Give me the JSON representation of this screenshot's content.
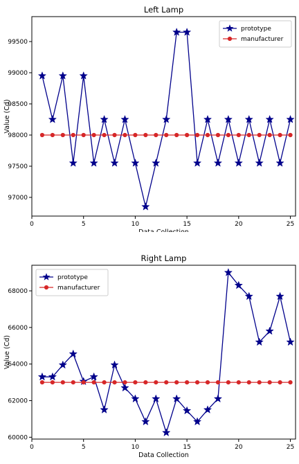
{
  "chart_data": [
    {
      "type": "line",
      "title": "Left Lamp",
      "xlabel": "Data Collection",
      "ylabel": "Value (Cd)",
      "xlim": [
        0,
        25.5
      ],
      "ylim": [
        96700,
        99900
      ],
      "xticks": [
        0,
        5,
        10,
        15,
        20,
        25
      ],
      "yticks": [
        97000,
        97500,
        98000,
        98500,
        99000,
        99500
      ],
      "legend_position": "top-right",
      "grid": false,
      "x": [
        1,
        2,
        3,
        4,
        5,
        6,
        7,
        8,
        9,
        10,
        11,
        12,
        13,
        14,
        15,
        16,
        17,
        18,
        19,
        20,
        21,
        22,
        23,
        24,
        25
      ],
      "series": [
        {
          "name": "prototype",
          "color": "#00008b",
          "marker": "star",
          "values": [
            98950,
            98250,
            98950,
            97550,
            98950,
            97550,
            98250,
            97550,
            98250,
            97550,
            96850,
            97550,
            98250,
            99650,
            99650,
            97550,
            98250,
            97550,
            98250,
            97550,
            98250,
            97550,
            98250,
            97550,
            98250
          ]
        },
        {
          "name": "manufacturer",
          "color": "#d62728",
          "marker": "circle",
          "values": [
            98000,
            98000,
            98000,
            98000,
            98000,
            98000,
            98000,
            98000,
            98000,
            98000,
            98000,
            98000,
            98000,
            98000,
            98000,
            98000,
            98000,
            98000,
            98000,
            98000,
            98000,
            98000,
            98000,
            98000,
            98000
          ]
        }
      ]
    },
    {
      "type": "line",
      "title": "Right Lamp",
      "xlabel": "Data Collection",
      "ylabel": "Value (Cd)",
      "xlim": [
        0,
        25.5
      ],
      "ylim": [
        59900,
        69400
      ],
      "xticks": [
        0,
        5,
        10,
        15,
        20,
        25
      ],
      "yticks": [
        60000,
        62000,
        64000,
        66000,
        68000
      ],
      "legend_position": "top-left",
      "grid": false,
      "x": [
        1,
        2,
        3,
        4,
        5,
        6,
        7,
        8,
        9,
        10,
        11,
        12,
        13,
        14,
        15,
        16,
        17,
        18,
        19,
        20,
        21,
        22,
        23,
        24,
        25
      ],
      "series": [
        {
          "name": "prototype",
          "color": "#00008b",
          "marker": "star",
          "values": [
            63300,
            63300,
            63950,
            64550,
            63050,
            63300,
            61500,
            63950,
            62700,
            62100,
            60850,
            62100,
            60250,
            62100,
            61450,
            60850,
            61500,
            62100,
            69000,
            68300,
            67700,
            65200,
            65800,
            67700,
            65200
          ]
        },
        {
          "name": "manufacturer",
          "color": "#d62728",
          "marker": "circle",
          "values": [
            63000,
            63000,
            63000,
            63000,
            63000,
            63000,
            63000,
            63000,
            63000,
            63000,
            63000,
            63000,
            63000,
            63000,
            63000,
            63000,
            63000,
            63000,
            63000,
            63000,
            63000,
            63000,
            63000,
            63000,
            63000
          ]
        }
      ]
    }
  ]
}
